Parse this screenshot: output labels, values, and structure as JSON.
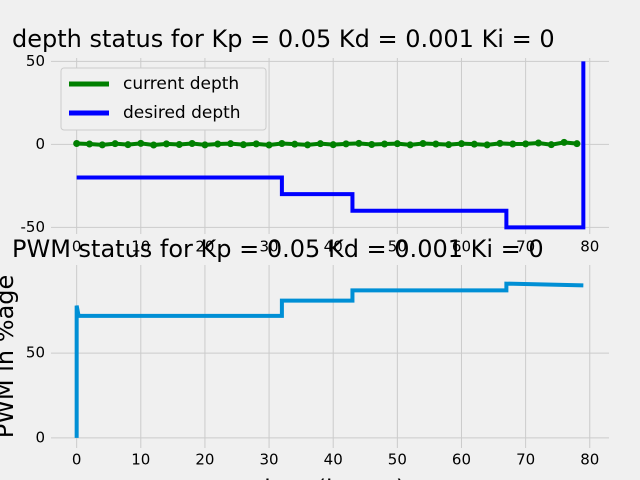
{
  "chart_data": [
    {
      "type": "line",
      "title": "depth status for Kp = 0.05 Kd = 0.001 Ki = 0",
      "xlim": [
        -4,
        83
      ],
      "xticks": [
        0,
        10,
        20,
        30,
        40,
        50,
        60,
        70,
        80
      ],
      "ylim": [
        -54,
        52
      ],
      "yticks": [
        -50,
        0,
        50
      ],
      "grid": true,
      "legend": "upper left",
      "series": [
        {
          "name": "current depth",
          "color": "#008000",
          "markers": true,
          "x": [
            0,
            2,
            4,
            6,
            8,
            10,
            12,
            14,
            16,
            18,
            20,
            22,
            24,
            26,
            28,
            30,
            32,
            34,
            36,
            38,
            40,
            42,
            44,
            46,
            48,
            50,
            52,
            54,
            56,
            58,
            60,
            62,
            64,
            66,
            68,
            70,
            72,
            74,
            76,
            78
          ],
          "values": [
            0.5,
            0.2,
            -0.3,
            0.4,
            -0.2,
            0.6,
            -0.4,
            0.3,
            -0.1,
            0.5,
            -0.3,
            0.2,
            0.4,
            -0.2,
            0.3,
            -0.4,
            0.5,
            0.1,
            -0.3,
            0.4,
            -0.2,
            0.3,
            0.6,
            -0.1,
            0.2,
            0.4,
            -0.3,
            0.5,
            0.2,
            -0.2,
            0.4,
            0.1,
            -0.3,
            0.6,
            0.2,
            0.3,
            0.8,
            -0.2,
            1.2,
            0.4
          ]
        },
        {
          "name": "desired depth",
          "color": "#0000ff",
          "markers": false,
          "x": [
            0,
            32,
            32,
            43,
            43,
            67,
            67,
            79,
            79
          ],
          "values": [
            -20,
            -20,
            -30,
            -30,
            -40,
            -40,
            -50,
            -50,
            50
          ]
        }
      ]
    },
    {
      "type": "line",
      "title": "PWM status for Kp = 0.05 Kd = 0.001 Ki = 0",
      "xlabel": "time (in sec)",
      "ylabel": "PWM in %age",
      "xlim": [
        -4,
        83
      ],
      "xticks": [
        0,
        10,
        20,
        30,
        40,
        50,
        60,
        70,
        80
      ],
      "ylim": [
        -6,
        102
      ],
      "yticks": [
        0,
        50
      ],
      "grid": true,
      "series": [
        {
          "color": "#008fd5",
          "markers": false,
          "x": [
            0,
            0,
            0.3,
            32,
            32,
            43,
            43,
            67,
            67,
            79
          ],
          "values": [
            0,
            78,
            72,
            72,
            81,
            81,
            87,
            87,
            91,
            90
          ]
        }
      ]
    }
  ]
}
